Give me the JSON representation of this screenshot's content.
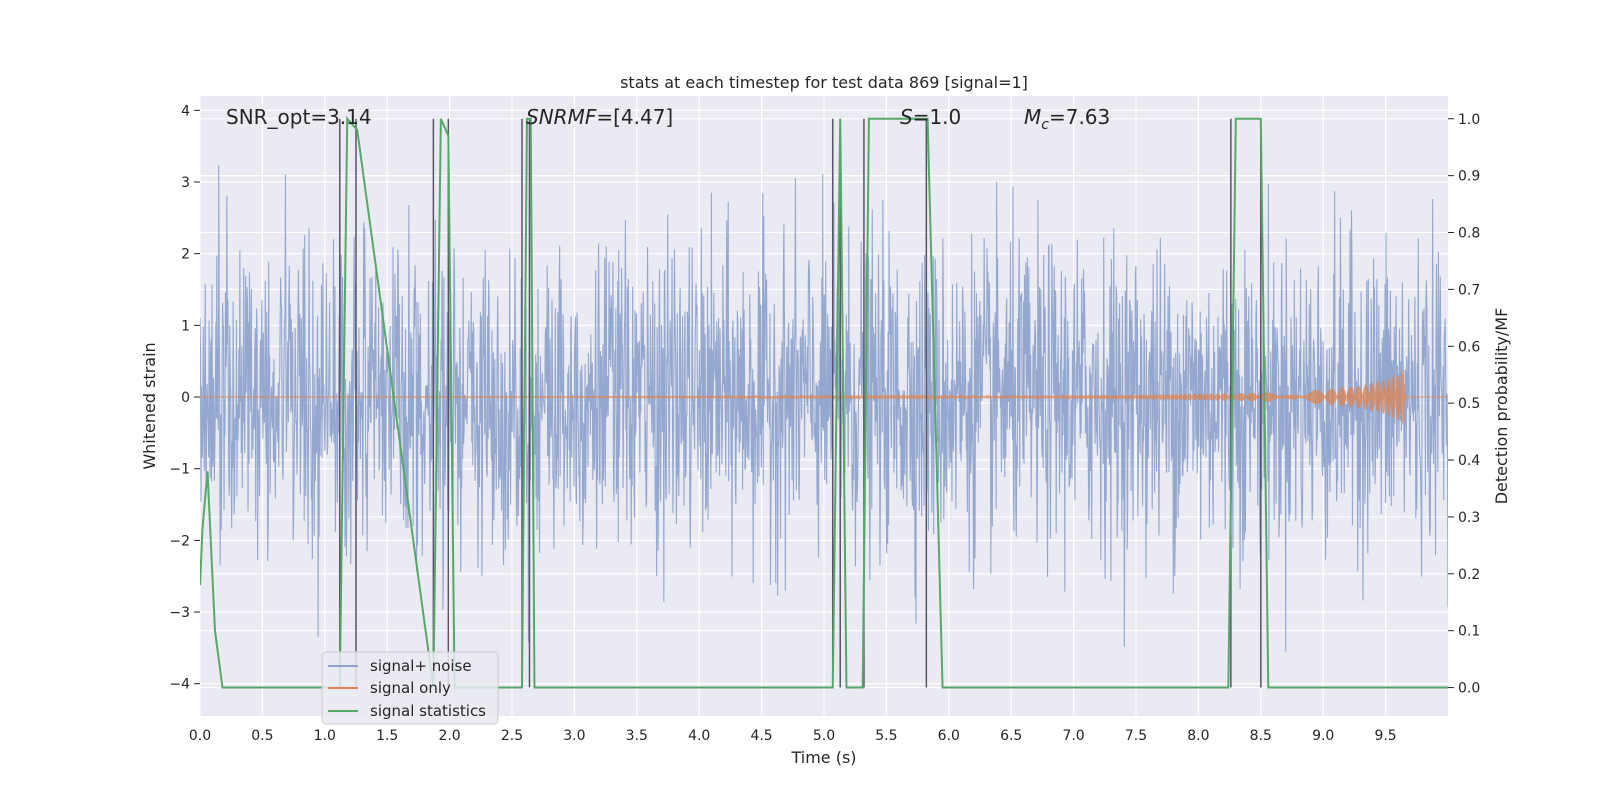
{
  "chart_data": {
    "type": "line",
    "title": "stats at each timestep for test data 869 [signal=1]",
    "xlabel": "Time (s)",
    "ylabel": "Whitened strain",
    "ylabel_right": "Detection probability/MF",
    "xlim": [
      0.0,
      10.0
    ],
    "ylim": [
      -4.45,
      4.2
    ],
    "ylim_right": [
      -0.05,
      1.04
    ],
    "grid": true,
    "legend_position": "lower-left",
    "x_ticks": [
      "0.0",
      "0.5",
      "1.0",
      "1.5",
      "2.0",
      "2.5",
      "3.0",
      "3.5",
      "4.0",
      "4.5",
      "5.0",
      "5.5",
      "6.0",
      "6.5",
      "7.0",
      "7.5",
      "8.0",
      "8.5",
      "9.0",
      "9.5"
    ],
    "x_tick_values": [
      0.0,
      0.5,
      1.0,
      1.5,
      2.0,
      2.5,
      3.0,
      3.5,
      4.0,
      4.5,
      5.0,
      5.5,
      6.0,
      6.5,
      7.0,
      7.5,
      8.0,
      8.5,
      9.0,
      9.5
    ],
    "y_ticks": [
      "4",
      "3",
      "2",
      "1",
      "0",
      "−1",
      "−2",
      "−3",
      "−4"
    ],
    "y_tick_values": [
      4,
      3,
      2,
      1,
      0,
      -1,
      -2,
      -3,
      -4
    ],
    "y_ticks_right": [
      "1.0",
      "0.9",
      "0.8",
      "0.7",
      "0.6",
      "0.5",
      "0.4",
      "0.3",
      "0.2",
      "0.1",
      "0.0"
    ],
    "y_tick_values_right": [
      1.0,
      0.9,
      0.8,
      0.7,
      0.6,
      0.5,
      0.4,
      0.3,
      0.2,
      0.1,
      0.0
    ],
    "annotations": {
      "snr_opt": "SNR_opt=3.14",
      "snr_mf_base": "SNR",
      "snr_mf_sub": "MF",
      "snr_mf_value": "=[4.47]",
      "s_symbol": "S",
      "s_value": "=1.0",
      "mc_base": "M",
      "mc_sub": "c",
      "mc_value": "=7.63"
    },
    "series": [
      {
        "name": "signal+ noise",
        "color": "#8fa3cc",
        "axis": "left",
        "description_amplitude": {
          "typical_envelope": [
            -2.2,
            2.2
          ],
          "max": 3.7,
          "min": -4.0
        }
      },
      {
        "name": "signal only",
        "color": "#dd8452",
        "axis": "left",
        "envelope": {
          "x": [
            0.0,
            6.0,
            7.5,
            8.5,
            9.0,
            9.3,
            9.5,
            9.6,
            9.65,
            9.66
          ],
          "amp": [
            0.0,
            0.01,
            0.03,
            0.06,
            0.1,
            0.16,
            0.24,
            0.33,
            0.4,
            0.0
          ]
        }
      },
      {
        "name": "signal statistics",
        "color": "#55a868",
        "axis": "right",
        "x": [
          0.0,
          0.02,
          0.06,
          0.12,
          0.18,
          1.12,
          1.18,
          1.26,
          1.87,
          1.93,
          1.99,
          2.04,
          2.58,
          2.62,
          2.65,
          2.68,
          5.07,
          5.13,
          5.18,
          5.31,
          5.36,
          5.83,
          5.95,
          8.24,
          8.3,
          8.5,
          8.56,
          10.0
        ],
        "y": [
          0.18,
          0.28,
          0.38,
          0.1,
          0.0,
          0.0,
          1.0,
          0.98,
          0.0,
          1.0,
          0.97,
          0.0,
          0.0,
          1.0,
          1.0,
          0.0,
          0.0,
          1.0,
          0.0,
          0.0,
          1.0,
          1.0,
          0.0,
          0.0,
          1.0,
          1.0,
          0.0,
          0.0
        ]
      }
    ],
    "vertical_markers": [
      1.12,
      1.25,
      1.87,
      1.99,
      2.58,
      2.64,
      5.07,
      5.13,
      5.32,
      5.82,
      8.26,
      8.5
    ]
  },
  "legend": {
    "items": [
      {
        "label": "signal+ noise",
        "color": "#8fa3cc"
      },
      {
        "label": "signal only",
        "color": "#dd8452"
      },
      {
        "label": "signal statistics",
        "color": "#55a868"
      }
    ]
  }
}
